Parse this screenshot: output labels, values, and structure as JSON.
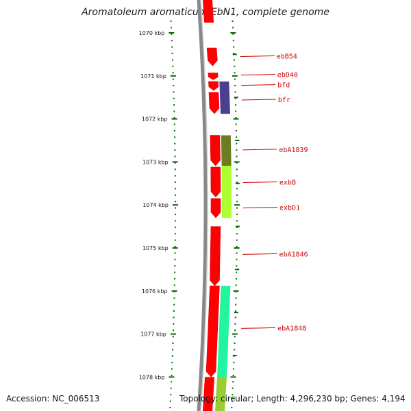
{
  "title": "Aromatoleum aromaticum EbN1, complete genome",
  "accession": "Accession: NC_006513",
  "topology": "Topology: circular; Length: 4,296,230 bp; Genes: 4,194",
  "colors": {
    "forward": "#ff0000",
    "backbone": "#888888",
    "ruler": "#006600",
    "label": "#cc0000"
  },
  "ruler": [
    {
      "label": "1070 kbp",
      "pos": 1070
    },
    {
      "label": "1071 kbp",
      "pos": 1071
    },
    {
      "label": "1072 kbp",
      "pos": 1072
    },
    {
      "label": "1073 kbp",
      "pos": 1073
    },
    {
      "label": "1074 kbp",
      "pos": 1074
    },
    {
      "label": "1075 kbp",
      "pos": 1075
    },
    {
      "label": "1076 kbp",
      "pos": 1076
    },
    {
      "label": "1077 kbp",
      "pos": 1077
    },
    {
      "label": "1078 kbp",
      "pos": 1078
    }
  ],
  "genes": [
    {
      "name": "ebB54",
      "start": 1070.35,
      "end": 1070.77,
      "at": 1070.55
    },
    {
      "name": "ebD40",
      "start": 1070.93,
      "end": 1071.09,
      "at": 1070.98
    },
    {
      "name": "bfd",
      "start": 1071.13,
      "end": 1071.34,
      "at": 1071.22
    },
    {
      "name": "bfr",
      "start": 1071.38,
      "end": 1071.88,
      "at": 1071.56
    },
    {
      "name": "ebA1839",
      "start": 1072.38,
      "end": 1073.09,
      "at": 1072.72
    },
    {
      "name": "exbB",
      "start": 1073.12,
      "end": 1073.82,
      "at": 1073.48
    },
    {
      "name": "exbD1",
      "start": 1073.85,
      "end": 1074.3,
      "at": 1074.07
    },
    {
      "name": "ebA1846",
      "start": 1074.5,
      "end": 1075.88,
      "at": 1075.15
    },
    {
      "name": "ebA1848",
      "start": 1075.88,
      "end": 1078.0,
      "at": 1076.87
    }
  ],
  "annotation_blocks": [
    {
      "start": 1071.13,
      "end": 1071.88,
      "color": "#4b3f94"
    },
    {
      "start": 1072.38,
      "end": 1073.09,
      "color": "#6b7d1f"
    },
    {
      "start": 1073.09,
      "end": 1074.3,
      "color": "#adff2f"
    },
    {
      "start": 1075.88,
      "end": 1078.0,
      "color": "#22f5a0"
    },
    {
      "start": 1078.0,
      "end": 1078.9,
      "color": "#9acd32"
    }
  ]
}
